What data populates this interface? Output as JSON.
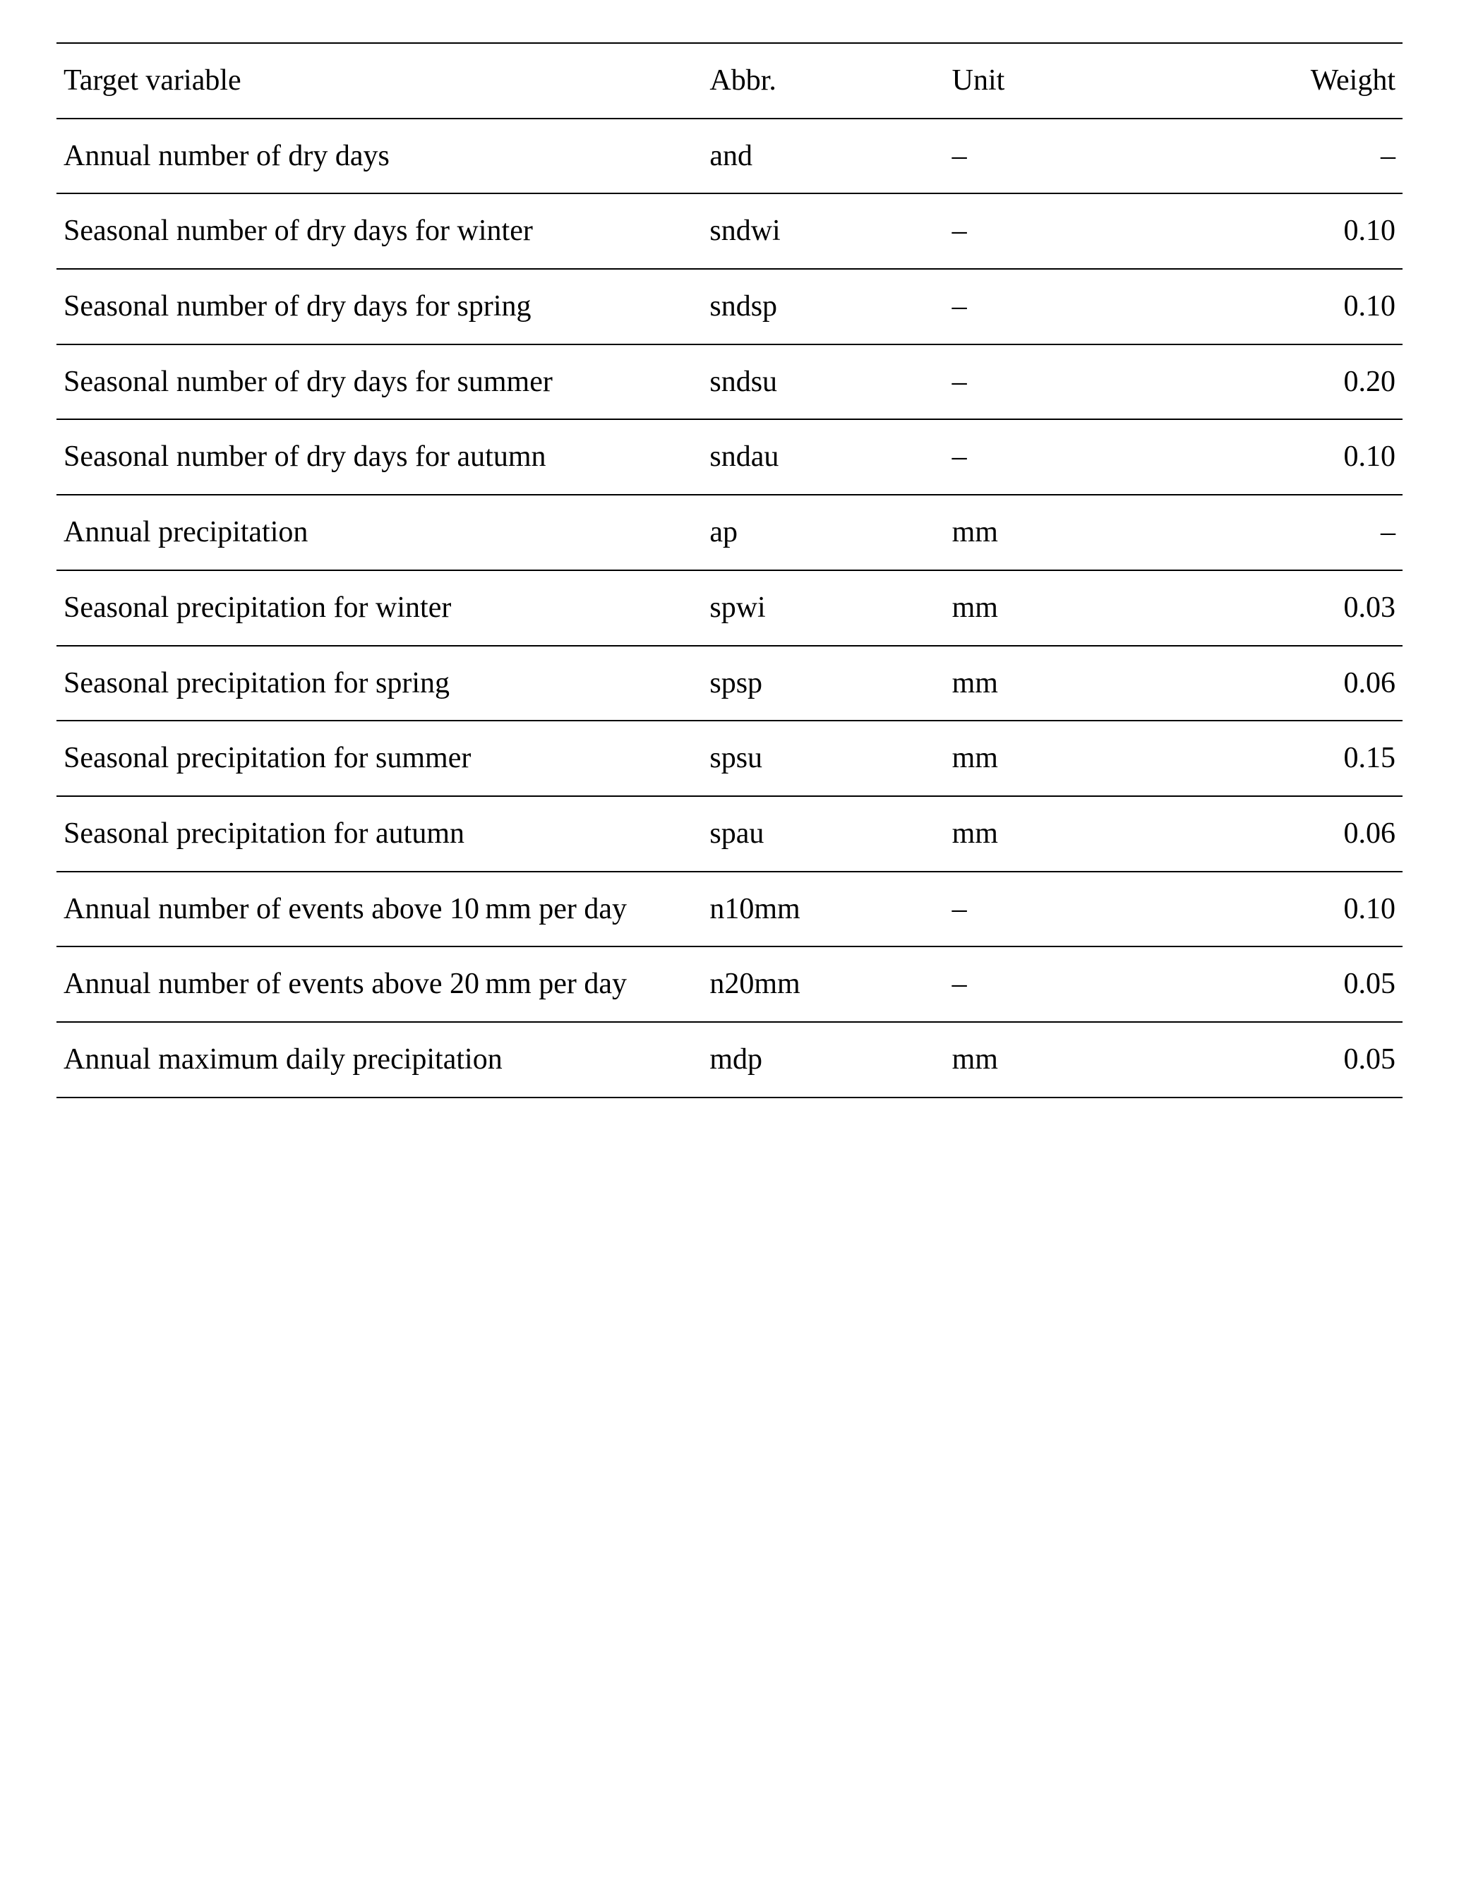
{
  "table": {
    "type": "table",
    "background_color": "#ffffff",
    "text_color": "#000000",
    "border_color": "#000000",
    "font_family": "Times New Roman",
    "font_size_pt": 32,
    "columns": [
      {
        "label": "Target variable",
        "align": "left",
        "width_pct": 48
      },
      {
        "label": "Abbr.",
        "align": "left",
        "width_pct": 18
      },
      {
        "label": "Unit",
        "align": "left",
        "width_pct": 14
      },
      {
        "label": "Weight",
        "align": "right",
        "width_pct": 20
      }
    ],
    "rows": [
      {
        "variable": "Annual number of dry days",
        "abbr": "and",
        "unit": "–",
        "weight": "–"
      },
      {
        "variable": "Seasonal number of dry days for winter",
        "abbr": "sndwi",
        "unit": "–",
        "weight": "0.10"
      },
      {
        "variable": "Seasonal number of dry days for spring",
        "abbr": "sndsp",
        "unit": "–",
        "weight": "0.10"
      },
      {
        "variable": "Seasonal number of dry days for summer",
        "abbr": "sndsu",
        "unit": "–",
        "weight": "0.20"
      },
      {
        "variable": "Seasonal number of dry days for autumn",
        "abbr": "sndau",
        "unit": "–",
        "weight": "0.10"
      },
      {
        "variable": "Annual precipitation",
        "abbr": "ap",
        "unit": "mm",
        "weight": "–"
      },
      {
        "variable": "Seasonal precipitation for winter",
        "abbr": "spwi",
        "unit": "mm",
        "weight": "0.03"
      },
      {
        "variable": "Seasonal precipitation for spring",
        "abbr": "spsp",
        "unit": "mm",
        "weight": "0.06"
      },
      {
        "variable": "Seasonal precipitation for summer",
        "abbr": "spsu",
        "unit": "mm",
        "weight": "0.15"
      },
      {
        "variable": "Seasonal precipitation for autumn",
        "abbr": "spau",
        "unit": "mm",
        "weight": "0.06"
      },
      {
        "variable": "Annual number of events above 10 mm per day",
        "abbr": "n10mm",
        "unit": "–",
        "weight": "0.10"
      },
      {
        "variable": "Annual number of events above 20 mm per day",
        "abbr": "n20mm",
        "unit": "–",
        "weight": "0.05"
      },
      {
        "variable": "Annual maximum daily precipitation",
        "abbr": "mdp",
        "unit": "mm",
        "weight": "0.05"
      }
    ]
  }
}
